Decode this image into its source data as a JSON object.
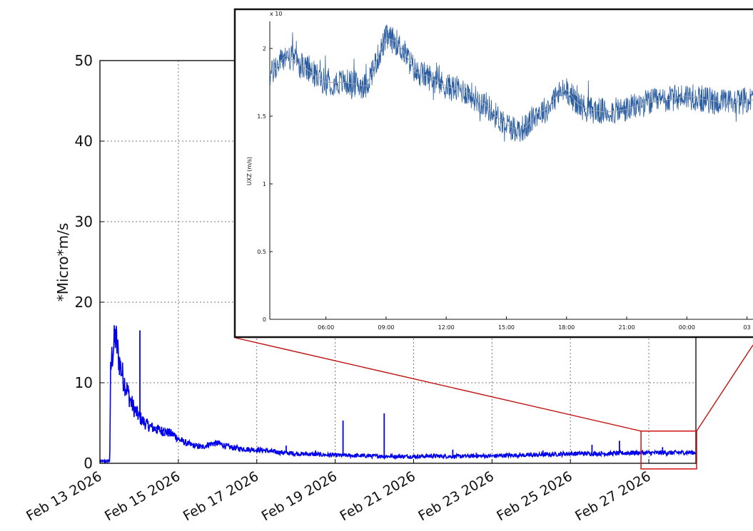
{
  "chart_data": [
    {
      "type": "line",
      "ylabel": "*Micro*m/s",
      "ylim": [
        0,
        50
      ],
      "yticks": [
        0,
        10,
        20,
        30,
        40,
        50
      ],
      "xlim_days": [
        0,
        15.2
      ],
      "xticks": [
        {
          "day": 0,
          "label": "Feb 13 2026"
        },
        {
          "day": 2,
          "label": "Feb 15 2026"
        },
        {
          "day": 4,
          "label": "Feb 17 2026"
        },
        {
          "day": 6,
          "label": "Feb 19 2026"
        },
        {
          "day": 8,
          "label": "Feb 21 2026"
        },
        {
          "day": 10,
          "label": "Feb 23 2026"
        },
        {
          "day": 12,
          "label": "Feb 25 2026"
        },
        {
          "day": 14,
          "label": "Feb 27 2026"
        }
      ],
      "grid": true,
      "line_color": "#0000ee",
      "series": [
        {
          "x": [
            0,
            0.25,
            0.26,
            0.27,
            0.3,
            0.35,
            0.4,
            0.45,
            0.5,
            0.55,
            0.6,
            0.7,
            0.8,
            0.9,
            1.0,
            1.1,
            1.2,
            1.3,
            1.45,
            1.6,
            1.75,
            1.9,
            2.0,
            2.2,
            2.4,
            2.6,
            2.8,
            3.0,
            3.3,
            3.6,
            3.9,
            4.2,
            4.5,
            5.0,
            5.5,
            6.0,
            6.5,
            7.0,
            7.5,
            8.0,
            8.5,
            9.0,
            9.5,
            10.0,
            10.5,
            11.0,
            11.5,
            12.0,
            12.5,
            13.0,
            13.5,
            14.0,
            14.5,
            15.0,
            15.2
          ],
          "y": [
            0.2,
            0.3,
            4.0,
            11.0,
            13.0,
            14.5,
            15.8,
            14.0,
            12.5,
            11.5,
            10.5,
            9.0,
            7.5,
            6.5,
            5.8,
            5.2,
            4.8,
            4.5,
            4.2,
            4.0,
            3.8,
            3.5,
            3.0,
            2.5,
            2.2,
            2.0,
            2.4,
            2.5,
            2.0,
            1.8,
            1.7,
            1.6,
            1.4,
            1.2,
            1.1,
            1.0,
            0.95,
            0.9,
            0.85,
            0.85,
            0.9,
            0.85,
            0.9,
            0.9,
            1.0,
            1.0,
            1.1,
            1.2,
            1.2,
            1.2,
            1.3,
            1.3,
            1.3,
            1.35,
            1.35
          ]
        }
      ],
      "spikes": [
        {
          "x": 1.02,
          "y": 16.5
        },
        {
          "x": 1.45,
          "y": 4.6
        },
        {
          "x": 1.62,
          "y": 4.4
        },
        {
          "x": 4.75,
          "y": 2.2
        },
        {
          "x": 5.5,
          "y": 1.6
        },
        {
          "x": 6.2,
          "y": 5.3
        },
        {
          "x": 7.25,
          "y": 6.2
        },
        {
          "x": 9.0,
          "y": 1.7
        },
        {
          "x": 9.6,
          "y": 1.3
        },
        {
          "x": 11.3,
          "y": 1.6
        },
        {
          "x": 12.55,
          "y": 2.3
        },
        {
          "x": 13.25,
          "y": 2.8
        },
        {
          "x": 14.35,
          "y": 2.0
        }
      ],
      "zoom_box": {
        "x0": 13.8,
        "x1": 15.2,
        "y0": -0.7,
        "y1": 4.0
      }
    },
    {
      "type": "line",
      "scale_label": "x 10",
      "ylabel": "UXZ (m/s)",
      "ylim": [
        0,
        2.2
      ],
      "yticks": [
        "0",
        "0.5",
        "1",
        "1.5",
        "2"
      ],
      "xticks": [
        "06:00",
        "09:00",
        "12:00",
        "15:00",
        "18:00",
        "21:00",
        "00:00",
        "03"
      ],
      "xtick_hours": [
        6,
        9,
        12,
        15,
        18,
        21,
        24,
        27
      ],
      "xlim_hours": [
        3.2,
        27.3
      ],
      "line_color": "#2a5ca0",
      "trend_color": "#9aa8b8",
      "series": [
        {
          "x": [
            3.2,
            4.0,
            5.0,
            6.0,
            7.0,
            8.0,
            8.5,
            9.0,
            9.5,
            10.0,
            10.5,
            11.0,
            12.0,
            13.0,
            14.0,
            14.5,
            15.0,
            15.5,
            16.0,
            16.5,
            17.0,
            17.5,
            18.0,
            18.5,
            19.0,
            20.0,
            21.0,
            22.0,
            23.0,
            24.0,
            25.0,
            26.0,
            27.3
          ],
          "y": [
            1.8,
            1.95,
            1.85,
            1.75,
            1.75,
            1.72,
            1.9,
            2.08,
            2.05,
            1.95,
            1.82,
            1.8,
            1.72,
            1.68,
            1.58,
            1.5,
            1.44,
            1.4,
            1.42,
            1.52,
            1.55,
            1.65,
            1.7,
            1.6,
            1.55,
            1.53,
            1.55,
            1.6,
            1.62,
            1.65,
            1.62,
            1.6,
            1.62
          ]
        }
      ]
    }
  ]
}
